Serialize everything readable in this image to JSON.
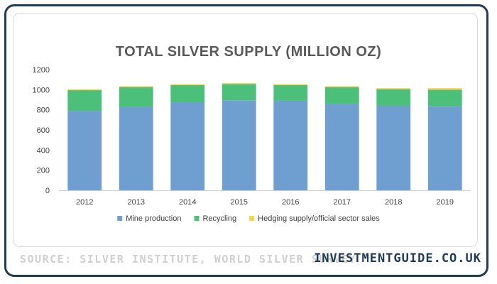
{
  "footer": {
    "source": "SOURCE: SILVER INSTITUTE, WORLD SILVER SURVEY",
    "brand": "INVESTMENTGUIDE.CO.UK"
  },
  "colors": {
    "mine": "#6f9fd0",
    "recycling": "#4cc07a",
    "hedging": "#f5d34a",
    "frame": "#1f3b57"
  },
  "chart_data": {
    "type": "bar",
    "stacked": true,
    "title": "TOTAL SILVER SUPPLY (MILLION OZ)",
    "categories": [
      "2012",
      "2013",
      "2014",
      "2015",
      "2016",
      "2017",
      "2018",
      "2019"
    ],
    "series": [
      {
        "name": "Mine production",
        "color": "#6f9fd0",
        "values": [
          790,
          830,
          875,
          895,
          890,
          860,
          840,
          835
        ]
      },
      {
        "name": "Recycling",
        "color": "#4cc07a",
        "values": [
          205,
          195,
          170,
          160,
          155,
          165,
          165,
          165
        ]
      },
      {
        "name": "Hedging supply/official sector sales",
        "color": "#f5d34a",
        "values": [
          10,
          10,
          10,
          10,
          10,
          10,
          10,
          15
        ]
      }
    ],
    "ylim": [
      0,
      1200
    ],
    "yticks": [
      0,
      200,
      400,
      600,
      800,
      1000,
      1200
    ],
    "grid": false,
    "legend": "bottom"
  }
}
